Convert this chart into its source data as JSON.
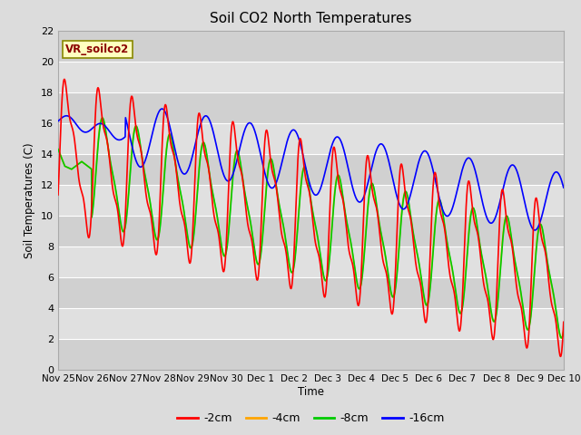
{
  "title": "Soil CO2 North Temperatures",
  "ylabel": "Soil Temperatures (C)",
  "xlabel": "Time",
  "annotation": "VR_soilco2",
  "ylim": [
    0,
    22
  ],
  "xlim": [
    0,
    15
  ],
  "bg_color": "#dcdcdc",
  "plot_bg_color": "#dcdcdc",
  "grid_color": "white",
  "series": {
    "neg2cm": {
      "label": "-2cm",
      "color": "#ff0000",
      "lw": 1.2
    },
    "neg4cm": {
      "label": "-4cm",
      "color": "#ffa500",
      "lw": 1.2
    },
    "neg8cm": {
      "label": "-8cm",
      "color": "#00cc00",
      "lw": 1.2
    },
    "neg16cm": {
      "label": "-16cm",
      "color": "#0000ff",
      "lw": 1.2
    }
  },
  "xtick_labels": [
    "Nov 25",
    "Nov 26",
    "Nov 27",
    "Nov 28",
    "Nov 29",
    "Nov 30",
    "Dec 1",
    "Dec 2",
    "Dec 3",
    "Dec 4",
    "Dec 5",
    "Dec 6",
    "Dec 7",
    "Dec 8",
    "Dec 9",
    "Dec 10"
  ],
  "figsize": [
    6.4,
    4.8
  ],
  "dpi": 100
}
